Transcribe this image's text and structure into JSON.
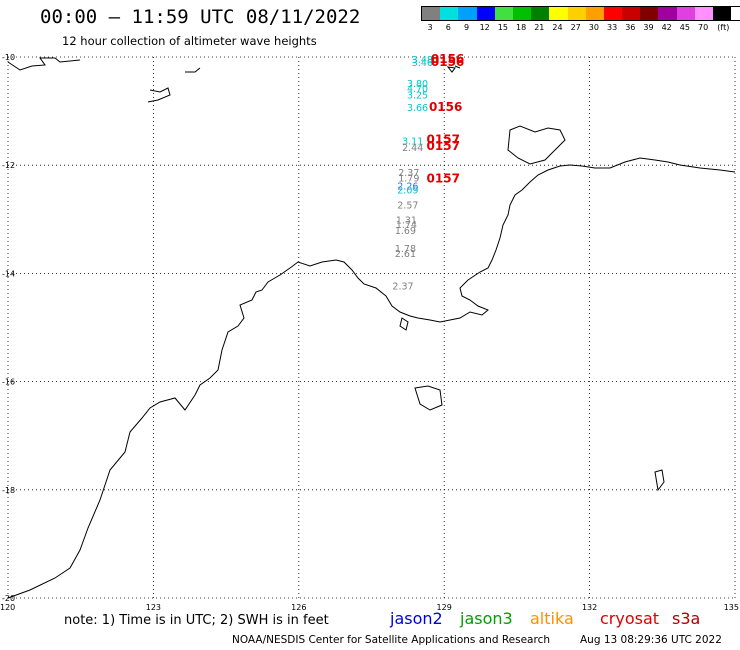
{
  "title": "00:00 – 11:59 UTC 08/11/2022",
  "subtitle": "12 hour collection of altimeter wave heights",
  "legend": {
    "unit": "(ft)",
    "bins": [
      {
        "label": "3",
        "color": "#808080"
      },
      {
        "label": "6",
        "color": "#00e0e0"
      },
      {
        "label": "9",
        "color": "#00a0ff"
      },
      {
        "label": "12",
        "color": "#0000ff"
      },
      {
        "label": "15",
        "color": "#40e040"
      },
      {
        "label": "18",
        "color": "#00c000"
      },
      {
        "label": "21",
        "color": "#008000"
      },
      {
        "label": "24",
        "color": "#ffff00"
      },
      {
        "label": "27",
        "color": "#ffd000"
      },
      {
        "label": "30",
        "color": "#ffa000"
      },
      {
        "label": "33",
        "color": "#ff0000"
      },
      {
        "label": "36",
        "color": "#c80000"
      },
      {
        "label": "39",
        "color": "#800000"
      },
      {
        "label": "42",
        "color": "#a000a0"
      },
      {
        "label": "45",
        "color": "#e040e0"
      },
      {
        "label": "70",
        "color": "#ff90ff"
      },
      {
        "label": "",
        "color": "#000000"
      }
    ]
  },
  "map": {
    "lon_range": [
      120,
      135
    ],
    "lat_range": [
      -20,
      -10
    ],
    "x_ticks": [
      "120",
      "123",
      "126",
      "129",
      "132",
      "135"
    ],
    "y_ticks": [
      "-10",
      "-12",
      "-14",
      "-16",
      "-18",
      "-20"
    ],
    "grid": "dotted"
  },
  "observations": [
    {
      "value": "3.48",
      "color": "#00c8c8",
      "lon": 128.55,
      "lat": -10.11
    },
    {
      "value": "3.46",
      "color": "#00c8c8",
      "lon": 128.55,
      "lat": -10.17
    },
    {
      "value": "3.80",
      "color": "#00c8c8",
      "lon": 128.45,
      "lat": -10.55
    },
    {
      "value": "4.70",
      "color": "#00c8c8",
      "lon": 128.45,
      "lat": -10.65
    },
    {
      "value": "3.25",
      "color": "#00c8c8",
      "lon": 128.45,
      "lat": -10.77
    },
    {
      "value": "3.66",
      "color": "#00c8c8",
      "lon": 128.45,
      "lat": -11.0
    },
    {
      "value": "3.11",
      "color": "#00c8c8",
      "lon": 128.35,
      "lat": -11.62
    },
    {
      "value": "2.44",
      "color": "#808080",
      "lon": 128.35,
      "lat": -11.74
    },
    {
      "value": "2.37",
      "color": "#808080",
      "lon": 128.27,
      "lat": -12.2
    },
    {
      "value": "1.79",
      "color": "#808080",
      "lon": 128.27,
      "lat": -12.3
    },
    {
      "value": "2.26",
      "color": "#3c6ee6",
      "lon": 128.25,
      "lat": -12.45
    },
    {
      "value": "2.09",
      "color": "#00c8c8",
      "lon": 128.25,
      "lat": -12.52
    },
    {
      "value": "2.57",
      "color": "#808080",
      "lon": 128.25,
      "lat": -12.8
    },
    {
      "value": "1.31",
      "color": "#808080",
      "lon": 128.22,
      "lat": -13.08
    },
    {
      "value": "1.74",
      "color": "#808080",
      "lon": 128.22,
      "lat": -13.16
    },
    {
      "value": "1.69",
      "color": "#808080",
      "lon": 128.2,
      "lat": -13.27
    },
    {
      "value": "1.78",
      "color": "#808080",
      "lon": 128.2,
      "lat": -13.6
    },
    {
      "value": "2.61",
      "color": "#808080",
      "lon": 128.2,
      "lat": -13.7
    },
    {
      "value": "2.37",
      "color": "#808080",
      "lon": 128.15,
      "lat": -14.3
    }
  ],
  "pass_times": [
    {
      "value": "0156",
      "lon": 129.07,
      "lat": -10.11
    },
    {
      "value": "0156",
      "lon": 129.07,
      "lat": -10.17
    },
    {
      "value": "0156",
      "lon": 129.03,
      "lat": -11.0
    },
    {
      "value": "0157",
      "lon": 128.98,
      "lat": -11.6
    },
    {
      "value": "0157",
      "lon": 128.98,
      "lat": -11.72
    },
    {
      "value": "0157",
      "lon": 128.98,
      "lat": -12.32
    }
  ],
  "note": "note: 1) Time is in UTC; 2) SWH is in feet",
  "satellites": [
    {
      "name": "jason2",
      "color": "#0000e0"
    },
    {
      "name": "jason3",
      "color": "#00a000"
    },
    {
      "name": "altika",
      "color": "#ff9000"
    },
    {
      "name": "cryosat",
      "color": "#e00000"
    },
    {
      "name": "s3a",
      "color": "#b00000"
    }
  ],
  "credit": "NOAA/NESDIS Center for Satellite Applications and Research",
  "timestamp": "Aug 13 08:29:36 UTC 2022"
}
